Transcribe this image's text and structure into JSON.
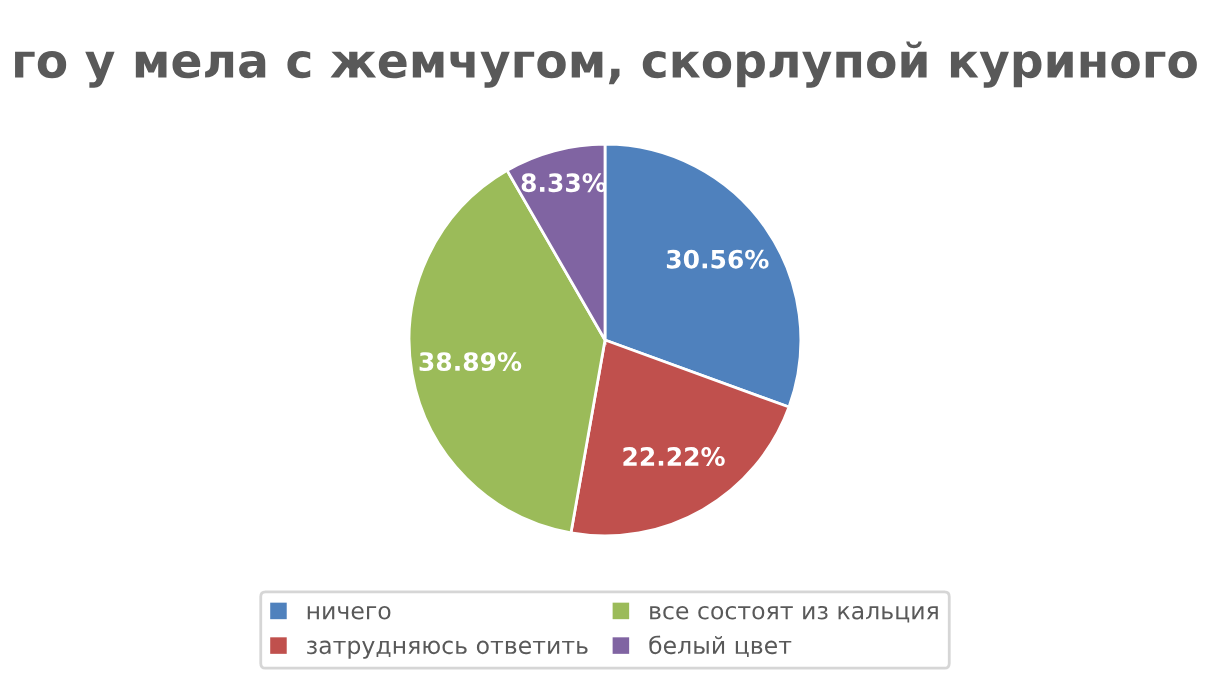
{
  "chart_data": {
    "type": "pie",
    "title": "го у мела с жемчугом, скорлупой куриного",
    "categories": [
      "ничего",
      "затрудняюсь ответить",
      "все состоят из кальция",
      "белый цвет"
    ],
    "values": [
      30.56,
      22.22,
      38.89,
      8.33
    ],
    "colors": [
      "#4f81bd",
      "#c0504d",
      "#9bbb59",
      "#8064a2"
    ],
    "value_labels": [
      "30.56%",
      "22.22%",
      "38.89%",
      "8.33%"
    ],
    "legend": "bottom"
  }
}
